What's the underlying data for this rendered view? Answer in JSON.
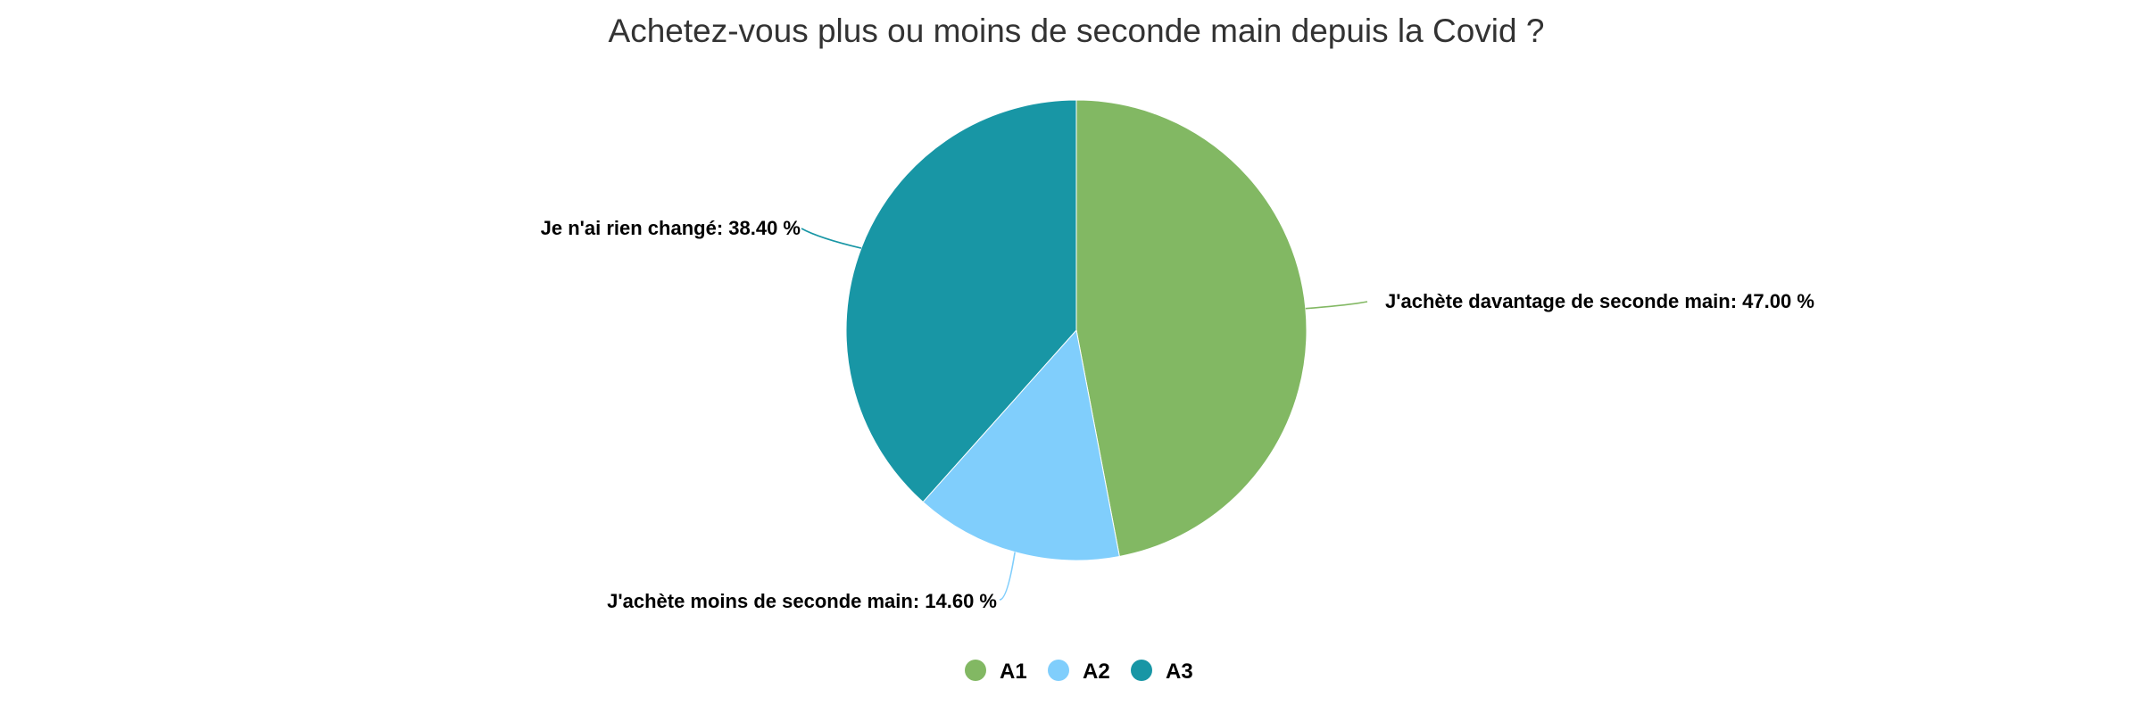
{
  "chart_data": {
    "type": "pie",
    "title": "Achetez-vous plus ou moins de seconde main depuis la Covid ?",
    "slices": [
      {
        "key": "A1",
        "label": "J'achète davantage de seconde main",
        "value": 47.0,
        "value_label": "47.00 %",
        "color": "#82b863"
      },
      {
        "key": "A2",
        "label": "J'achète moins de seconde main",
        "value": 14.6,
        "value_label": "14.60 %",
        "color": "#80cefc"
      },
      {
        "key": "A3",
        "label": "Je n'ai rien changé",
        "value": 38.4,
        "value_label": "38.40 %",
        "color": "#1896a5"
      }
    ],
    "start_angle_deg": 0,
    "direction": "clockwise",
    "legend": {
      "position": "bottom-center",
      "entries": [
        "A1",
        "A2",
        "A3"
      ]
    }
  }
}
